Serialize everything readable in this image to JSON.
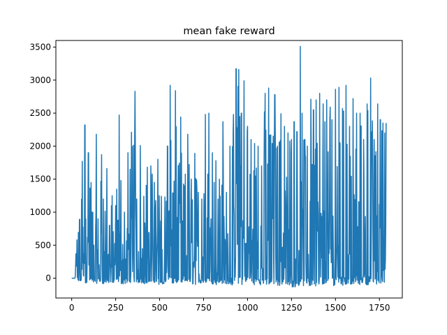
{
  "chart_data": {
    "type": "line",
    "title": "mean fake reward",
    "xlabel": "",
    "ylabel": "",
    "xlim": [
      -90,
      1880
    ],
    "ylim": [
      -300,
      3600
    ],
    "grid": false,
    "legend": "none",
    "x_ticks": [
      0,
      250,
      500,
      750,
      1000,
      1250,
      1500,
      1750
    ],
    "x_tick_labels": [
      "0",
      "250",
      "500",
      "750",
      "1000",
      "1250",
      "1500",
      "1750"
    ],
    "y_ticks": [
      0,
      500,
      1000,
      1500,
      2000,
      2500,
      3000,
      3500
    ],
    "y_tick_labels": [
      "0",
      "500",
      "1000",
      "1500",
      "2000",
      "2500",
      "3000",
      "3500"
    ],
    "series": [
      {
        "color": "#1f77b4",
        "n_points": 1790,
        "x": [
          0,
          25,
          30,
          45,
          60,
          75,
          80,
          95,
          110,
          120,
          140,
          150,
          170,
          180,
          200,
          215,
          230,
          250,
          270,
          280,
          300,
          320,
          340,
          360,
          370,
          390,
          410,
          430,
          450,
          470,
          490,
          510,
          530,
          545,
          560,
          575,
          590,
          610,
          620,
          640,
          660,
          680,
          700,
          720,
          740,
          760,
          780,
          800,
          820,
          840,
          860,
          880,
          900,
          920,
          935,
          950,
          965,
          980,
          1000,
          1020,
          1040,
          1060,
          1080,
          1100,
          1120,
          1140,
          1155,
          1170,
          1190,
          1210,
          1230,
          1250,
          1265,
          1280,
          1300,
          1310,
          1325,
          1340,
          1360,
          1375,
          1390,
          1410,
          1430,
          1450,
          1470,
          1480,
          1500,
          1520,
          1540,
          1560,
          1580,
          1600,
          1620,
          1640,
          1660,
          1680,
          1700,
          1720,
          1740,
          1755,
          1770,
          1780,
          1788
        ],
        "values": [
          0,
          370,
          580,
          890,
          1770,
          2320,
          900,
          1900,
          1450,
          1000,
          2180,
          900,
          1870,
          1200,
          1660,
          800,
          1250,
          1100,
          2470,
          1480,
          1000,
          1900,
          2210,
          2830,
          1200,
          2010,
          1240,
          1680,
          1700,
          1450,
          1800,
          1240,
          1230,
          2000,
          2920,
          1290,
          2840,
          1600,
          2440,
          1400,
          2180,
          1500,
          1890,
          1300,
          1200,
          2480,
          2500,
          1900,
          1780,
          1500,
          2370,
          1300,
          2000,
          2480,
          3170,
          3160,
          2500,
          2990,
          2300,
          2100,
          2040,
          2000,
          1700,
          2800,
          2880,
          2040,
          2780,
          2000,
          2490,
          2300,
          2200,
          2100,
          2370,
          2220,
          3510,
          2500,
          2100,
          2000,
          2710,
          2550,
          2700,
          2800,
          2640,
          2700,
          2590,
          2400,
          2860,
          2890,
          2570,
          2920,
          2300,
          2720,
          2500,
          2500,
          2100,
          2640,
          3030,
          2100,
          2640,
          2400,
          2350,
          2200,
          2350
        ],
        "min_values": [
          0,
          -30,
          -50,
          -60,
          -60,
          -70,
          -70,
          -80,
          -60,
          -70,
          -80,
          -80,
          -70,
          -90,
          -80,
          -70,
          -90,
          -80,
          -60,
          -90,
          -90,
          -80,
          -60,
          -80,
          -70,
          -80,
          -90,
          -80,
          -90,
          -60,
          -100,
          -90,
          -90,
          -80,
          -90,
          -90,
          -80,
          -90,
          -90,
          -100,
          -80,
          -90,
          -100,
          -90,
          -80,
          -100,
          -80,
          -90,
          -100,
          -100,
          -80,
          -100,
          -90,
          -120,
          -100,
          -110,
          -100,
          -110,
          -90,
          -100,
          -100,
          -120,
          -110,
          -100,
          -120,
          -100,
          -130,
          -120,
          -120,
          -130,
          -140,
          -140,
          -130,
          -140,
          -130,
          -120,
          -140,
          -120,
          -130,
          -110,
          -120,
          -110,
          -120,
          -110,
          -100,
          -110,
          -120,
          -90,
          -110,
          -100,
          -110,
          -100,
          -90,
          -100,
          -90,
          -100,
          -110,
          -100,
          -90,
          -90,
          -80,
          -80,
          500
        ]
      }
    ]
  }
}
